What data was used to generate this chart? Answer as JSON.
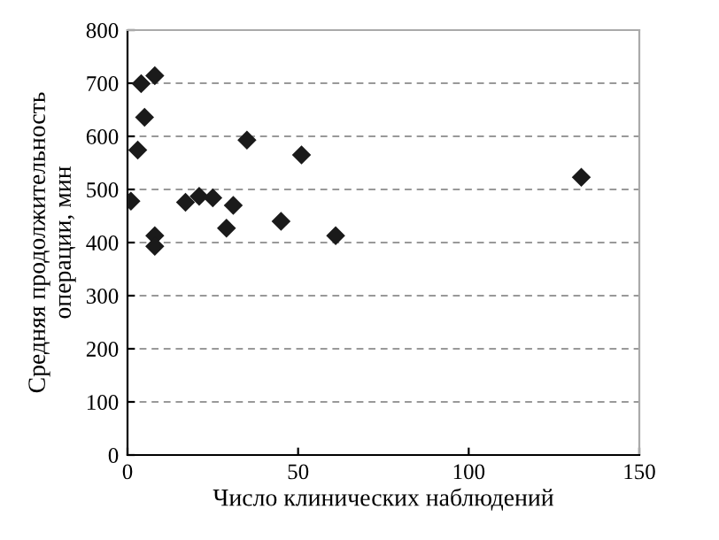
{
  "chart_data": {
    "type": "scatter",
    "xlabel": "Число клинических наблюдений",
    "ylabel": "Средняя продолжительность\nоперации, мин",
    "x": [
      1,
      3,
      4,
      5,
      8,
      8,
      8,
      17,
      21,
      25,
      29,
      31,
      35,
      45,
      51,
      61,
      133
    ],
    "values": [
      478,
      574,
      699,
      636,
      714,
      413,
      393,
      476,
      487,
      484,
      427,
      470,
      593,
      440,
      565,
      413,
      523
    ],
    "color": "#1a1a1a",
    "marker": "diamond",
    "xlim": [
      0,
      150
    ],
    "xticks": [
      0,
      50,
      100,
      150
    ],
    "ylim": [
      0,
      800
    ],
    "yticks": [
      0,
      100,
      200,
      300,
      400,
      500,
      600,
      700,
      800
    ],
    "grid": "y"
  }
}
